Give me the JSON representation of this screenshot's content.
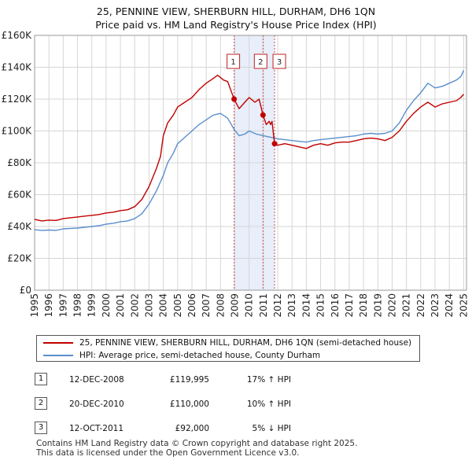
{
  "chart_title": {
    "line1": "25, PENNINE VIEW, SHERBURN HILL, DURHAM, DH6 1QN",
    "line2": "Price paid vs. HM Land Registry's House Price Index (HPI)"
  },
  "colors": {
    "property": "#c00000",
    "hpi": "#5a8fcc",
    "shade": "#e8eefa",
    "grid": "#d6d6d6",
    "vline": "#d05050"
  },
  "chart_data": {
    "type": "line",
    "title": "25, PENNINE VIEW, SHERBURN HILL, DURHAM, DH6 1QN — Price paid vs. HM Land Registry's House Price Index (HPI)",
    "xlabel": "",
    "ylabel": "",
    "xlim": [
      1995.0,
      2025.2
    ],
    "ylim": [
      0,
      160000
    ],
    "grid": true,
    "y_ticks": [
      {
        "value": 0,
        "label": "£0"
      },
      {
        "value": 20000,
        "label": "£20K"
      },
      {
        "value": 40000,
        "label": "£40K"
      },
      {
        "value": 60000,
        "label": "£60K"
      },
      {
        "value": 80000,
        "label": "£80K"
      },
      {
        "value": 100000,
        "label": "£100K"
      },
      {
        "value": 120000,
        "label": "£120K"
      },
      {
        "value": 140000,
        "label": "£140K"
      },
      {
        "value": 160000,
        "label": "£160K"
      }
    ],
    "x_ticks": [
      "1995",
      "1996",
      "1997",
      "1998",
      "1999",
      "2000",
      "2001",
      "2002",
      "2003",
      "2004",
      "2005",
      "2006",
      "2007",
      "2008",
      "2009",
      "2010",
      "2011",
      "2012",
      "2013",
      "2014",
      "2015",
      "2016",
      "2017",
      "2018",
      "2019",
      "2020",
      "2021",
      "2022",
      "2023",
      "2024",
      "2025"
    ],
    "shaded_range": [
      2008.95,
      2011.78
    ],
    "series": [
      {
        "name": "25, PENNINE VIEW, SHERBURN HILL, DURHAM, DH6 1QN (semi-detached house)",
        "color": "#c00000",
        "points": [
          [
            1995.0,
            44500
          ],
          [
            1995.5,
            43500
          ],
          [
            1996.0,
            44000
          ],
          [
            1996.5,
            43800
          ],
          [
            1997.0,
            45000
          ],
          [
            1997.5,
            45500
          ],
          [
            1998.0,
            46000
          ],
          [
            1998.5,
            46500
          ],
          [
            1999.0,
            47000
          ],
          [
            1999.5,
            47500
          ],
          [
            2000.0,
            48500
          ],
          [
            2000.5,
            49000
          ],
          [
            2001.0,
            50000
          ],
          [
            2001.5,
            50500
          ],
          [
            2002.0,
            52500
          ],
          [
            2002.5,
            57000
          ],
          [
            2003.0,
            65000
          ],
          [
            2003.5,
            76000
          ],
          [
            2003.8,
            84000
          ],
          [
            2004.0,
            97000
          ],
          [
            2004.3,
            105000
          ],
          [
            2004.7,
            110000
          ],
          [
            2005.0,
            115000
          ],
          [
            2005.5,
            118000
          ],
          [
            2006.0,
            121000
          ],
          [
            2006.5,
            126000
          ],
          [
            2007.0,
            130000
          ],
          [
            2007.5,
            133000
          ],
          [
            2007.8,
            135000
          ],
          [
            2008.2,
            132000
          ],
          [
            2008.5,
            131000
          ],
          [
            2008.95,
            119995
          ],
          [
            2009.3,
            114000
          ],
          [
            2009.7,
            118000
          ],
          [
            2010.0,
            121000
          ],
          [
            2010.4,
            118000
          ],
          [
            2010.7,
            120000
          ],
          [
            2010.97,
            110000
          ],
          [
            2011.2,
            104000
          ],
          [
            2011.4,
            106000
          ],
          [
            2011.5,
            104000
          ],
          [
            2011.6,
            106000
          ],
          [
            2011.78,
            92000
          ],
          [
            2012.0,
            91000
          ],
          [
            2012.5,
            92000
          ],
          [
            2013.0,
            91000
          ],
          [
            2013.5,
            90000
          ],
          [
            2014.0,
            89000
          ],
          [
            2014.5,
            91000
          ],
          [
            2015.0,
            92000
          ],
          [
            2015.5,
            91000
          ],
          [
            2016.0,
            92500
          ],
          [
            2016.5,
            93000
          ],
          [
            2017.0,
            93000
          ],
          [
            2017.5,
            94000
          ],
          [
            2018.0,
            95000
          ],
          [
            2018.5,
            95500
          ],
          [
            2019.0,
            95000
          ],
          [
            2019.5,
            94000
          ],
          [
            2020.0,
            96000
          ],
          [
            2020.5,
            100000
          ],
          [
            2021.0,
            106000
          ],
          [
            2021.5,
            111000
          ],
          [
            2022.0,
            115000
          ],
          [
            2022.5,
            118000
          ],
          [
            2023.0,
            115000
          ],
          [
            2023.5,
            117000
          ],
          [
            2024.0,
            118000
          ],
          [
            2024.5,
            119000
          ],
          [
            2024.8,
            121000
          ],
          [
            2025.0,
            123000
          ]
        ]
      },
      {
        "name": "HPI: Average price, semi-detached house, County Durham",
        "color": "#5a8fcc",
        "points": [
          [
            1995.0,
            38000
          ],
          [
            1995.5,
            37500
          ],
          [
            1996.0,
            37800
          ],
          [
            1996.5,
            37600
          ],
          [
            1997.0,
            38500
          ],
          [
            1997.5,
            38800
          ],
          [
            1998.0,
            39000
          ],
          [
            1998.5,
            39500
          ],
          [
            1999.0,
            40000
          ],
          [
            1999.5,
            40500
          ],
          [
            2000.0,
            41500
          ],
          [
            2000.5,
            42000
          ],
          [
            2001.0,
            43000
          ],
          [
            2001.5,
            43500
          ],
          [
            2002.0,
            45000
          ],
          [
            2002.5,
            48000
          ],
          [
            2003.0,
            54000
          ],
          [
            2003.5,
            62000
          ],
          [
            2004.0,
            72000
          ],
          [
            2004.3,
            80000
          ],
          [
            2004.7,
            86000
          ],
          [
            2005.0,
            92000
          ],
          [
            2005.5,
            96000
          ],
          [
            2006.0,
            100000
          ],
          [
            2006.5,
            104000
          ],
          [
            2007.0,
            107000
          ],
          [
            2007.5,
            110000
          ],
          [
            2008.0,
            111000
          ],
          [
            2008.5,
            108000
          ],
          [
            2008.95,
            101000
          ],
          [
            2009.3,
            97000
          ],
          [
            2009.7,
            98000
          ],
          [
            2010.0,
            100000
          ],
          [
            2010.5,
            98000
          ],
          [
            2011.0,
            97000
          ],
          [
            2011.5,
            96000
          ],
          [
            2012.0,
            95000
          ],
          [
            2012.5,
            94500
          ],
          [
            2013.0,
            94000
          ],
          [
            2013.5,
            93500
          ],
          [
            2014.0,
            93000
          ],
          [
            2014.5,
            94000
          ],
          [
            2015.0,
            94500
          ],
          [
            2015.5,
            95000
          ],
          [
            2016.0,
            95500
          ],
          [
            2016.5,
            96000
          ],
          [
            2017.0,
            96500
          ],
          [
            2017.5,
            97000
          ],
          [
            2018.0,
            98000
          ],
          [
            2018.5,
            98500
          ],
          [
            2019.0,
            98000
          ],
          [
            2019.5,
            98500
          ],
          [
            2020.0,
            100000
          ],
          [
            2020.5,
            105000
          ],
          [
            2021.0,
            113000
          ],
          [
            2021.5,
            119000
          ],
          [
            2022.0,
            124000
          ],
          [
            2022.5,
            130000
          ],
          [
            2023.0,
            127000
          ],
          [
            2023.5,
            128000
          ],
          [
            2024.0,
            130000
          ],
          [
            2024.5,
            132000
          ],
          [
            2024.8,
            134000
          ],
          [
            2025.0,
            138000
          ]
        ]
      }
    ],
    "sales": [
      {
        "label": "1",
        "x": 2008.95,
        "y": 119995
      },
      {
        "label": "2",
        "x": 2010.97,
        "y": 110000
      },
      {
        "label": "3",
        "x": 2011.78,
        "y": 92000
      }
    ]
  },
  "legend": {
    "property_label": "25, PENNINE VIEW, SHERBURN HILL, DURHAM, DH6 1QN (semi-detached house)",
    "hpi_label": "HPI: Average price, semi-detached house, County Durham"
  },
  "transactions": [
    {
      "num": "1",
      "date": "12-DEC-2008",
      "price": "£119,995",
      "change": "17% ↑ HPI"
    },
    {
      "num": "2",
      "date": "20-DEC-2010",
      "price": "£110,000",
      "change": "10% ↑ HPI"
    },
    {
      "num": "3",
      "date": "12-OCT-2011",
      "price": "£92,000",
      "change": "5% ↓ HPI"
    }
  ],
  "footer": {
    "line1": "Contains HM Land Registry data © Crown copyright and database right 2025.",
    "line2": "This data is licensed under the Open Government Licence v3.0."
  }
}
